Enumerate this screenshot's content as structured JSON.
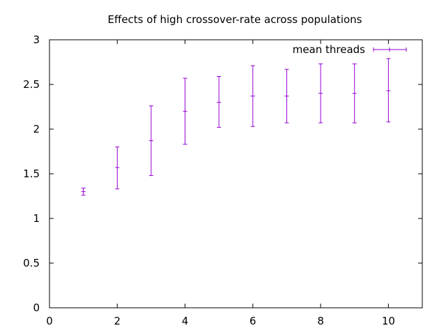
{
  "chart_data": {
    "type": "scatter",
    "title": "Effects of high crossover-rate across populations",
    "xlabel": "",
    "ylabel": "",
    "xlim": [
      0,
      11
    ],
    "ylim": [
      0,
      3
    ],
    "x_ticks": [
      0,
      2,
      4,
      6,
      8,
      10
    ],
    "y_ticks": [
      0,
      0.5,
      1,
      1.5,
      2,
      2.5,
      3
    ],
    "grid": false,
    "legend_position": "top-right",
    "series": [
      {
        "name": "mean threads",
        "color": "#9400d3",
        "style": "errorbars",
        "points": [
          {
            "x": 1,
            "y": 1.3,
            "ymin": 1.26,
            "ymax": 1.34
          },
          {
            "x": 2,
            "y": 1.57,
            "ymin": 1.33,
            "ymax": 1.8
          },
          {
            "x": 3,
            "y": 1.87,
            "ymin": 1.48,
            "ymax": 2.26
          },
          {
            "x": 4,
            "y": 2.2,
            "ymin": 1.83,
            "ymax": 2.57
          },
          {
            "x": 5,
            "y": 2.3,
            "ymin": 2.02,
            "ymax": 2.59
          },
          {
            "x": 6,
            "y": 2.37,
            "ymin": 2.03,
            "ymax": 2.71
          },
          {
            "x": 7,
            "y": 2.37,
            "ymin": 2.07,
            "ymax": 2.67
          },
          {
            "x": 8,
            "y": 2.4,
            "ymin": 2.07,
            "ymax": 2.73
          },
          {
            "x": 9,
            "y": 2.4,
            "ymin": 2.07,
            "ymax": 2.73
          },
          {
            "x": 10,
            "y": 2.43,
            "ymin": 2.08,
            "ymax": 2.79
          }
        ]
      }
    ]
  }
}
